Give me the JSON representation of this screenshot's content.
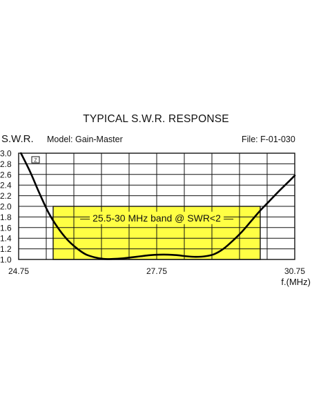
{
  "title": "TYPICAL S.W.R. RESPONSE",
  "header": {
    "swr_label": "S.W.R.",
    "model": "Model:  Gain-Master",
    "file": "File:  F-01-030"
  },
  "chart_data": {
    "type": "line",
    "title": "TYPICAL S.W.R. RESPONSE",
    "xlabel": "f.(MHz)",
    "ylabel": "S.W.R.",
    "xlim": [
      24.75,
      30.75
    ],
    "ylim": [
      1.0,
      3.0
    ],
    "x_tick_labels": [
      "24.75",
      "27.75",
      "30.75"
    ],
    "x_tick_values": [
      24.75,
      27.75,
      30.75
    ],
    "y_tick_labels": [
      "3.0",
      "2.8",
      "2.6",
      "2.4",
      "2.2",
      "2.0",
      "1.8",
      "1.6",
      "1.4",
      "1.2",
      "1.0"
    ],
    "y_tick_values": [
      3.0,
      2.8,
      2.6,
      2.4,
      2.2,
      2.0,
      1.8,
      1.6,
      1.4,
      1.2,
      1.0
    ],
    "grid": true,
    "series": [
      {
        "color": "#000000",
        "x": [
          24.8,
          25.0,
          25.2,
          25.4,
          25.6,
          25.8,
          26.0,
          26.2,
          26.4,
          26.6,
          26.8,
          27.0,
          27.2,
          27.4,
          27.6,
          27.8,
          28.0,
          28.2,
          28.4,
          28.6,
          28.8,
          29.0,
          29.2,
          29.4,
          29.6,
          29.8,
          30.0,
          30.2,
          30.4,
          30.6,
          30.75
        ],
        "y": [
          3.0,
          2.65,
          2.25,
          1.88,
          1.6,
          1.38,
          1.22,
          1.1,
          1.04,
          1.01,
          1.01,
          1.02,
          1.04,
          1.06,
          1.08,
          1.09,
          1.09,
          1.08,
          1.06,
          1.05,
          1.06,
          1.1,
          1.2,
          1.35,
          1.52,
          1.72,
          1.92,
          2.1,
          2.28,
          2.45,
          2.58
        ]
      }
    ],
    "highlight_band": {
      "label": "25.5-30 MHz band @ SWR<2",
      "x": [
        25.5,
        30.0
      ],
      "y": [
        1.0,
        2.0
      ],
      "color": "#ffff44"
    }
  }
}
